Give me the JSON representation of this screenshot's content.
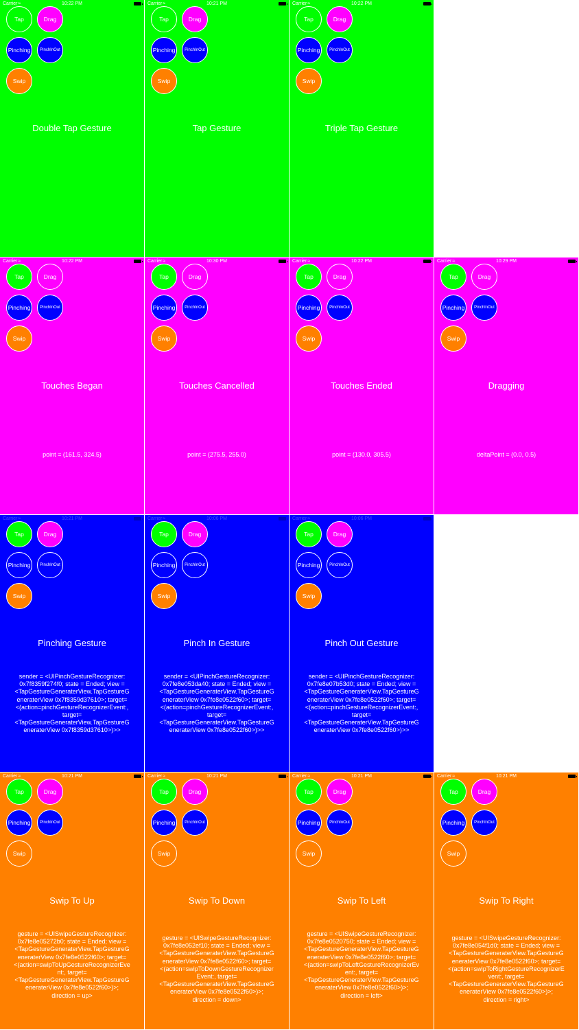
{
  "colors": {
    "green": "#00ff00",
    "magenta": "#ff00ff",
    "blue": "#0000ff",
    "orange": "#ff8000"
  },
  "buttons": {
    "tap": "Tap",
    "drag": "Drag",
    "pinching": "Pinching",
    "pinch_in_out": "PinchInOut",
    "swip": "Swip"
  },
  "status": {
    "carrier": "Carrier",
    "wifi_icon": "wifi-icon",
    "battery_icon": "battery-icon"
  },
  "screens": [
    {
      "bg": "green",
      "time": "10:22 PM",
      "title": "Double Tap Gesture",
      "detail": ""
    },
    {
      "bg": "green",
      "time": "10:21 PM",
      "title": "Tap Gesture",
      "detail": ""
    },
    {
      "bg": "green",
      "time": "10:22 PM",
      "title": "Triple Tap Gesture",
      "detail": ""
    },
    {
      "bg": "magenta",
      "time": "10:22 PM",
      "title": "Touches Began",
      "detail": "point = (161.5, 324.5)"
    },
    {
      "bg": "magenta",
      "time": "10:30 PM",
      "title": "Touches Cancelled",
      "detail": "point = (275.5, 255.0)"
    },
    {
      "bg": "magenta",
      "time": "10:22 PM",
      "title": "Touches Ended",
      "detail": "point = (130.0, 305.5)"
    },
    {
      "bg": "magenta",
      "time": "10:29 PM",
      "title": "Dragging",
      "detail": "deltaPoint = (0.0, 0.5)"
    },
    {
      "bg": "blue",
      "time": "10:21 PM",
      "title": "Pinching Gesture",
      "detail": "sender = <UIPinchGestureRecognizer: 0x7f8359f274f0; state = Ended; view = <TapGestureGeneraterView.TapGestureGeneraterView 0x7f8359d37610>; target=<(action=pinchGestureRecognizerEvent:, target=<TapGestureGeneraterView.TapGestureGeneraterView 0x7f8359d37610>)>>"
    },
    {
      "bg": "blue",
      "time": "10:06 PM",
      "title": "Pinch In Gesture",
      "detail": "sender = <UIPinchGestureRecognizer: 0x7fe8e053da40; state = Ended; view = <TapGestureGeneraterView.TapGestureGeneraterView 0x7fe8e0522f60>; target=<(action=pinchGestureRecognizerEvent:, target=<TapGestureGeneraterView.TapGestureGeneraterView 0x7fe8e0522f60>)>>"
    },
    {
      "bg": "blue",
      "time": "10:06 PM",
      "title": "Pinch Out Gesture",
      "detail": "sender = <UIPinchGestureRecognizer: 0x7fe8e07b53d0; state = Ended; view = <TapGestureGeneraterView.TapGestureGeneraterView 0x7fe8e0522f60>; target=<(action=pinchGestureRecognizerEvent:, target=<TapGestureGeneraterView.TapGestureGeneraterView 0x7fe8e0522f60>)>>"
    },
    {
      "bg": "orange",
      "time": "10:21 PM",
      "title": "Swip To Up",
      "detail": "gesture = <UISwipeGestureRecognizer: 0x7fe8e05272b0; state = Ended; view = <TapGestureGeneraterView.TapGestureGeneraterView 0x7fe8e0522f60>; target=<(action=swipToUpGestureRecognizerEvent:, target=<TapGestureGeneraterView.TapGestureGeneraterView 0x7fe8e0522f60>)>; direction = up>"
    },
    {
      "bg": "orange",
      "time": "10:21 PM",
      "title": "Swip To Down",
      "detail": "gesture = <UISwipeGestureRecognizer: 0x7fe8e052ef10; state = Ended; view = <TapGestureGeneraterView.TapGestureGeneraterView 0x7fe8e0522f60>; target=<(action=swipToDownGestureRecognizerEvent:, target=<TapGestureGeneraterView.TapGestureGeneraterView 0x7fe8e0522f60>)>; direction = down>"
    },
    {
      "bg": "orange",
      "time": "10:21 PM",
      "title": "Swip To Left",
      "detail": "gesture = <UISwipeGestureRecognizer: 0x7fe8e0520750; state = Ended; view = <TapGestureGeneraterView.TapGestureGeneraterView 0x7fe8e0522f60>; target=<(action=swipToLeftGestureRecognizerEvent:, target=<TapGestureGeneraterView.TapGestureGeneraterView 0x7fe8e0522f60>)>; direction = left>"
    },
    {
      "bg": "orange",
      "time": "10:21 PM",
      "title": "Swip To Right",
      "detail": "gesture = <UISwipeGestureRecognizer: 0x7fe8e054f1d0; state = Ended; view = <TapGestureGeneraterView.TapGestureGeneraterView 0x7fe8e0522f60>; target=<(action=swipToRightGestureRecognizerEvent:, target=<TapGestureGeneraterView.TapGestureGeneraterView 0x7fe8e0522f60>)>; direction = right>"
    }
  ]
}
